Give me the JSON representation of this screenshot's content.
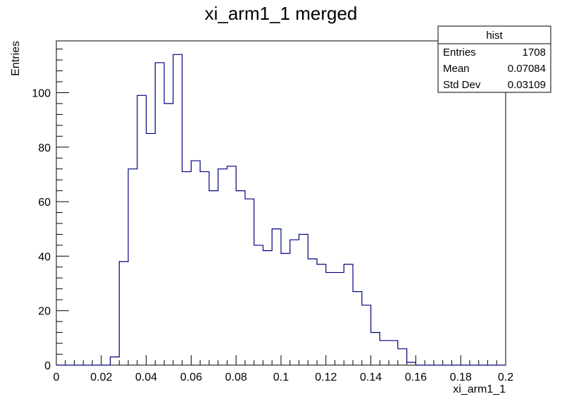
{
  "chart_data": {
    "type": "bar",
    "title": "xi_arm1_1 merged",
    "xlabel": "xi_arm1_1",
    "ylabel": "Entries",
    "xlim": [
      0,
      0.2
    ],
    "ylim": [
      0,
      119
    ],
    "bin_width": 0.004,
    "x_ticks": [
      "0",
      "0.02",
      "0.04",
      "0.06",
      "0.08",
      "0.1",
      "0.12",
      "0.14",
      "0.16",
      "0.18",
      "0.2"
    ],
    "y_ticks": [
      "0",
      "20",
      "40",
      "60",
      "80",
      "100"
    ],
    "values": [
      0,
      0,
      0,
      0,
      0,
      0,
      3,
      38,
      72,
      99,
      85,
      111,
      96,
      114,
      71,
      75,
      71,
      64,
      72,
      73,
      64,
      61,
      44,
      42,
      50,
      41,
      46,
      48,
      39,
      37,
      34,
      34,
      37,
      27,
      22,
      12,
      9,
      9,
      6,
      1,
      0,
      0,
      0,
      0,
      0,
      0,
      0,
      0,
      0,
      0
    ],
    "line_color": "#000080",
    "grid": false,
    "stats_box": {
      "title": "hist",
      "rows": [
        {
          "label": "Entries",
          "value": "1708"
        },
        {
          "label": "Mean",
          "value": "0.07084"
        },
        {
          "label": "Std Dev",
          "value": "0.03109"
        }
      ],
      "placement": "top-right"
    }
  }
}
